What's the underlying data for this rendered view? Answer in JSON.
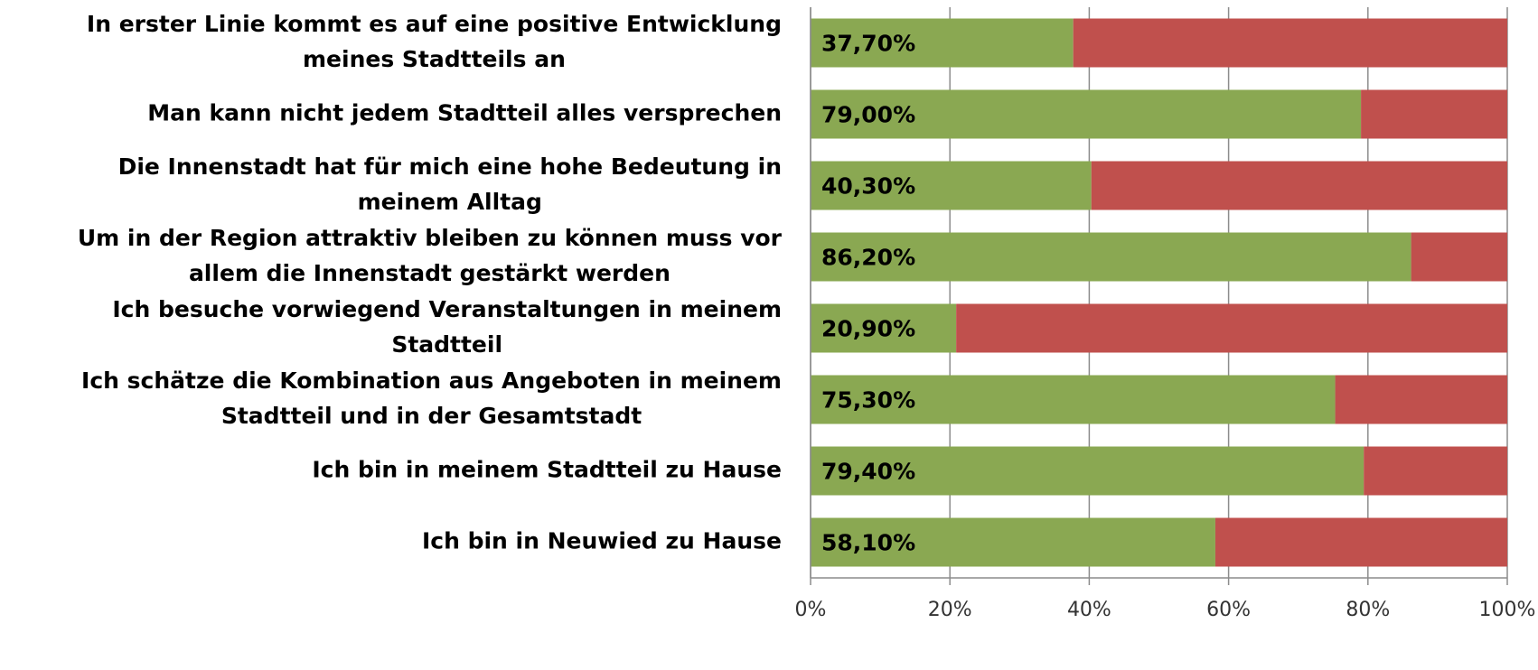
{
  "chart_data": {
    "type": "stacked_bar_horizontal",
    "categories": [
      [
        "In erster Linie kommt es auf eine positive Entwicklung",
        "meines Stadtteils an"
      ],
      [
        "Man kann nicht jedem Stadtteil alles versprechen"
      ],
      [
        "Die Innenstadt hat für mich eine hohe Bedeutung in",
        "meinem Alltag"
      ],
      [
        "Um in der Region attraktiv bleiben zu können muss vor",
        "allem die Innenstadt gestärkt werden"
      ],
      [
        "Ich besuche vorwiegend Veranstaltungen in meinem",
        "Stadtteil"
      ],
      [
        "Ich schätze die Kombination aus Angeboten in meinem",
        "Stadtteil und in der Gesamtstadt"
      ],
      [
        "Ich bin in meinem Stadtteil zu Hause"
      ],
      [
        "Ich bin in Neuwied zu Hause"
      ]
    ],
    "series": [
      {
        "color": "#8aa852",
        "values": [
          37.7,
          79.0,
          40.3,
          86.2,
          20.9,
          75.3,
          79.4,
          58.1
        ],
        "value_labels": [
          "37,70%",
          "79,00%",
          "40,30%",
          "86,20%",
          "20,90%",
          "75,30%",
          "79,40%",
          "58,10%"
        ]
      },
      {
        "color": "#c0504d",
        "values": [
          62.3,
          21.0,
          59.7,
          13.8,
          79.1,
          24.7,
          20.6,
          41.9
        ]
      }
    ],
    "xlim": [
      0,
      100
    ],
    "xticks": [
      {
        "value": 0,
        "label": "0%"
      },
      {
        "value": 20,
        "label": "20%"
      },
      {
        "value": 40,
        "label": "40%"
      },
      {
        "value": 60,
        "label": "60%"
      },
      {
        "value": 80,
        "label": "80%"
      },
      {
        "value": 100,
        "label": "100%"
      }
    ],
    "grid": true
  }
}
